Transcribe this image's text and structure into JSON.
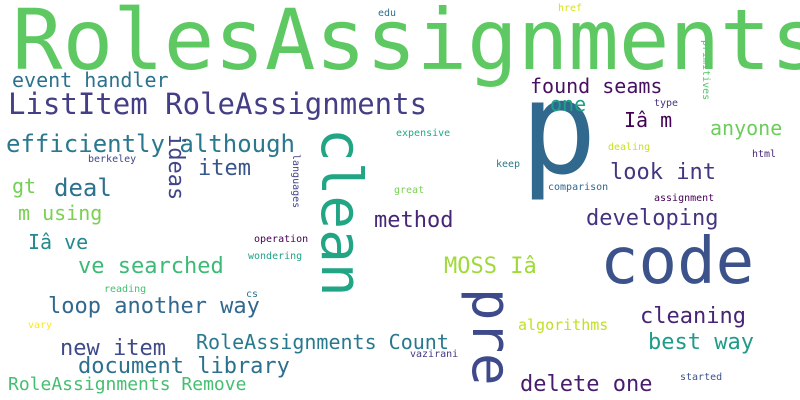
{
  "words": [
    {
      "text": "RolesAssignments",
      "color": "#5ec962"
    },
    {
      "text": "p",
      "color": "#31688e"
    },
    {
      "text": "code",
      "color": "#3b528b"
    },
    {
      "text": "clean",
      "color": "#21a585"
    },
    {
      "text": "pre",
      "color": "#3e4a89"
    },
    {
      "text": "ListItem RoleAssignments",
      "color": "#433e85"
    },
    {
      "text": "efficiently although",
      "color": "#2a788e"
    },
    {
      "text": "event handler",
      "color": "#2c728e"
    },
    {
      "text": "found seams",
      "color": "#471063"
    },
    {
      "text": "one",
      "color": "#1fa187"
    },
    {
      "text": "Iâ m",
      "color": "#440154"
    },
    {
      "text": "anyone",
      "color": "#6ccd5a"
    },
    {
      "text": "deal",
      "color": "#2c718e"
    },
    {
      "text": "gt",
      "color": "#73d056"
    },
    {
      "text": "m using",
      "color": "#7ad151"
    },
    {
      "text": "ideas",
      "color": "#414487"
    },
    {
      "text": "item",
      "color": "#39568c"
    },
    {
      "text": "look int",
      "color": "#453581"
    },
    {
      "text": "method",
      "color": "#482677"
    },
    {
      "text": "developing",
      "color": "#46337f"
    },
    {
      "text": "Iâ ve",
      "color": "#238a8d"
    },
    {
      "text": "ve searched",
      "color": "#3bbb75"
    },
    {
      "text": "MOSS Iâ",
      "color": "#a0da39"
    },
    {
      "text": "loop another way",
      "color": "#31688e"
    },
    {
      "text": "cleaning",
      "color": "#482475"
    },
    {
      "text": "RoleAssignments Count",
      "color": "#29798e"
    },
    {
      "text": "new item",
      "color": "#3e4a89"
    },
    {
      "text": "best way",
      "color": "#1e9c89"
    },
    {
      "text": "document library",
      "color": "#2d708e"
    },
    {
      "text": "RoleAssignments Remove",
      "color": "#44bf70"
    },
    {
      "text": "delete one",
      "color": "#481b6d"
    },
    {
      "text": "algorithms",
      "color": "#c2df23"
    },
    {
      "text": "edu",
      "color": "#2d708e"
    },
    {
      "text": "href",
      "color": "#d8e219"
    },
    {
      "text": "primitives",
      "color": "#52c569"
    },
    {
      "text": "type",
      "color": "#46337f"
    },
    {
      "text": "expensive",
      "color": "#22a884"
    },
    {
      "text": "dealing",
      "color": "#c8e020"
    },
    {
      "text": "berkeley",
      "color": "#3f4788"
    },
    {
      "text": "languages",
      "color": "#414487"
    },
    {
      "text": "keep",
      "color": "#2a788e"
    },
    {
      "text": "html",
      "color": "#482878"
    },
    {
      "text": "great",
      "color": "#7ad151"
    },
    {
      "text": "comparison",
      "color": "#31688e"
    },
    {
      "text": "assignment",
      "color": "#440154"
    },
    {
      "text": "operation",
      "color": "#440154"
    },
    {
      "text": "wondering",
      "color": "#1fa187"
    },
    {
      "text": "reading",
      "color": "#43bf71"
    },
    {
      "text": "cs",
      "color": "#2c728e"
    },
    {
      "text": "vary",
      "color": "#fde725"
    },
    {
      "text": "vazirani",
      "color": "#443a83"
    },
    {
      "text": "started",
      "color": "#3b528b"
    }
  ]
}
